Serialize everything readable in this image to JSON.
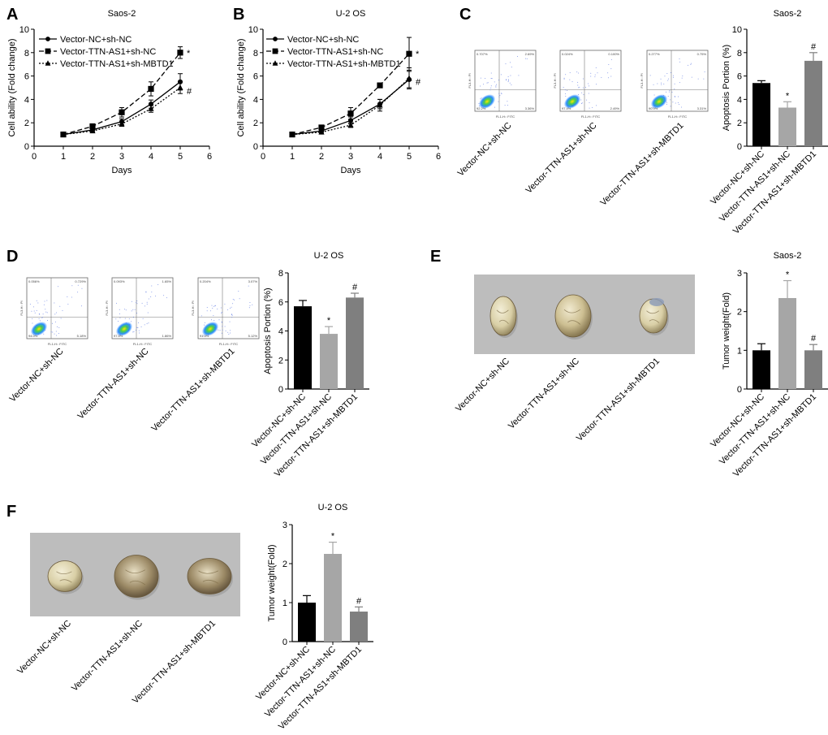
{
  "panel_labels": [
    "A",
    "B",
    "C",
    "D",
    "E",
    "F"
  ],
  "colors": {
    "black": "#000000",
    "light_gray": "#a6a6a6",
    "mid_gray": "#7f7f7f",
    "photo_bg": "#bdbdbd"
  },
  "flow_axis": {
    "x_label": "FL1-H:: FITC",
    "y_label": "FL3-H:: PI"
  },
  "chart_data": [
    {
      "panel": "A",
      "type": "line",
      "title": "Saos-2",
      "xlabel": "Days",
      "ylabel": "Cell ability (Fold change)",
      "xlim": [
        0,
        6
      ],
      "ylim": [
        0,
        10
      ],
      "x_ticks": [
        "0",
        "1",
        "2",
        "3",
        "4",
        "5",
        "6"
      ],
      "y_ticks": [
        "0",
        "2",
        "4",
        "6",
        "8",
        "10"
      ],
      "x": [
        1,
        2,
        3,
        4,
        5
      ],
      "series": [
        {
          "name": "Vector-NC+sh-NC",
          "marker": "circle",
          "dash": "solid",
          "values": [
            1.0,
            1.4,
            2.1,
            3.6,
            5.5
          ],
          "errors": [
            0.05,
            0.1,
            0.25,
            0.35,
            0.7
          ],
          "mark": ""
        },
        {
          "name": "Vector-TTN-AS1+sh-NC",
          "marker": "square",
          "dash": "dash",
          "values": [
            1.0,
            1.7,
            2.9,
            4.9,
            8.0
          ],
          "errors": [
            0.05,
            0.15,
            0.4,
            0.6,
            0.5
          ],
          "mark": "*"
        },
        {
          "name": "Vector-TTN-AS1+sh-MBTD1",
          "marker": "triangle",
          "dash": "dot",
          "values": [
            1.0,
            1.3,
            1.9,
            3.2,
            5.0
          ],
          "errors": [
            0.05,
            0.1,
            0.2,
            0.3,
            0.5
          ],
          "mark": "#"
        }
      ]
    },
    {
      "panel": "B",
      "type": "line",
      "title": "U-2 OS",
      "xlabel": "Days",
      "ylabel": "Cell ability (Fold change)",
      "xlim": [
        0,
        6
      ],
      "ylim": [
        0,
        10
      ],
      "x_ticks": [
        "0",
        "1",
        "2",
        "3",
        "4",
        "5",
        "6"
      ],
      "y_ticks": [
        "0",
        "2",
        "4",
        "6",
        "8",
        "10"
      ],
      "x": [
        1,
        2,
        3,
        4,
        5
      ],
      "series": [
        {
          "name": "Vector-NC+sh-NC",
          "marker": "circle",
          "dash": "solid",
          "values": [
            1.0,
            1.3,
            2.2,
            3.6,
            5.7
          ],
          "errors": [
            0.05,
            0.1,
            0.3,
            0.4,
            0.7
          ],
          "mark": ""
        },
        {
          "name": "Vector-TTN-AS1+sh-NC",
          "marker": "square",
          "dash": "dash",
          "values": [
            1.0,
            1.6,
            2.8,
            5.2,
            7.9
          ],
          "errors": [
            0.05,
            0.15,
            0.5,
            0.15,
            1.4
          ],
          "mark": "*"
        },
        {
          "name": "Vector-TTN-AS1+sh-MBTD1",
          "marker": "triangle",
          "dash": "dot",
          "values": [
            1.0,
            1.2,
            1.8,
            3.5,
            5.8
          ],
          "errors": [
            0.05,
            0.1,
            0.2,
            0.5,
            0.9
          ],
          "mark": "#"
        }
      ]
    },
    {
      "panel": "C",
      "type": "bar",
      "title": "Saos-2",
      "ylabel": "Apoptosis Portion (%)",
      "ylim": [
        0,
        10
      ],
      "y_ticks": [
        "0",
        "2",
        "4",
        "6",
        "8",
        "10"
      ],
      "categories": [
        "Vector-NC+sh-NC",
        "Vector-TTN-AS1+sh-NC",
        "Vector-TTN-AS1+sh-MBTD1"
      ],
      "values": [
        5.4,
        3.3,
        7.3
      ],
      "errors": [
        0.2,
        0.5,
        0.7
      ],
      "marks": [
        "",
        "*",
        "#"
      ]
    },
    {
      "panel": "D",
      "type": "bar",
      "title": "U-2 OS",
      "ylabel": "Apoptosis Portion (%)",
      "ylim": [
        0,
        8
      ],
      "y_ticks": [
        "0",
        "2",
        "4",
        "6",
        "8"
      ],
      "categories": [
        "Vector-NC+sh-NC",
        "Vector-TTN-AS1+sh-NC",
        "Vector-TTN-AS1+sh-MBTD1"
      ],
      "values": [
        5.7,
        3.8,
        6.3
      ],
      "errors": [
        0.4,
        0.5,
        0.3
      ],
      "marks": [
        "",
        "*",
        "#"
      ]
    },
    {
      "panel": "E",
      "type": "bar",
      "title": "Saos-2",
      "ylabel": "Tumor weight(Fold)",
      "ylim": [
        0,
        3
      ],
      "y_ticks": [
        "0",
        "1",
        "2",
        "3"
      ],
      "categories": [
        "Vector-NC+sh-NC",
        "Vector-TTN-AS1+sh-NC",
        "Vector-TTN-AS1+sh-MBTD1"
      ],
      "values": [
        1.0,
        2.35,
        1.0
      ],
      "errors": [
        0.17,
        0.45,
        0.15
      ],
      "marks": [
        "",
        "*",
        "#"
      ]
    },
    {
      "panel": "F",
      "type": "bar",
      "title": "U-2 OS",
      "ylabel": "Tumor weight(Fold)",
      "ylim": [
        0,
        3
      ],
      "y_ticks": [
        "0",
        "1",
        "2",
        "3"
      ],
      "categories": [
        "Vector-NC+sh-NC",
        "Vector-TTN-AS1+sh-NC",
        "Vector-TTN-AS1+sh-MBTD1"
      ],
      "values": [
        1.0,
        2.25,
        0.77
      ],
      "errors": [
        0.18,
        0.3,
        0.12
      ],
      "marks": [
        "",
        "*",
        "#"
      ]
    }
  ],
  "flow_panels": [
    {
      "panel": "C",
      "labels": [
        "Vector-NC+sh-NC",
        "Vector-TTN-AS1+sh-NC",
        "Vector-TTN-AS1+sh-MBTD1"
      ],
      "quadrants": [
        {
          "ul": "0.707%",
          "ur": "2.69%",
          "ll": "92.2%",
          "lr": "3.36%"
        },
        {
          "ul": "0.024%",
          "ur": "0.100%",
          "ll": "97.4%",
          "lr": "2.49%"
        },
        {
          "ul": "0.277%",
          "ur": "0.75%",
          "ll": "90.9%",
          "lr": "3.31%"
        }
      ]
    },
    {
      "panel": "D",
      "labels": [
        "Vector-NC+sh-NC",
        "Vector-TTN-AS1+sh-NC",
        "Vector-TTN-AS1+sh-MBTD1"
      ],
      "quadrants": [
        {
          "ul": "0.056%",
          "ur": "0.729%",
          "ll": "94.0%",
          "lr": "5.18%"
        },
        {
          "ul": "0.093%",
          "ur": "1.65%",
          "ll": "97.5%",
          "lr": "1.86%"
        },
        {
          "ul": "0.204%",
          "ur": "3.07%",
          "ll": "91.5%",
          "lr": "5.12%"
        }
      ]
    }
  ],
  "tumor_photos": [
    {
      "panel": "E",
      "labels": [
        "Vector-NC+sh-NC",
        "Vector-TTN-AS1+sh-NC",
        "Vector-TTN-AS1+sh-MBTD1"
      ]
    },
    {
      "panel": "F",
      "labels": [
        "Vector-NC+sh-NC",
        "Vector-TTN-AS1+sh-NC",
        "Vector-TTN-AS1+sh-MBTD1"
      ]
    }
  ]
}
